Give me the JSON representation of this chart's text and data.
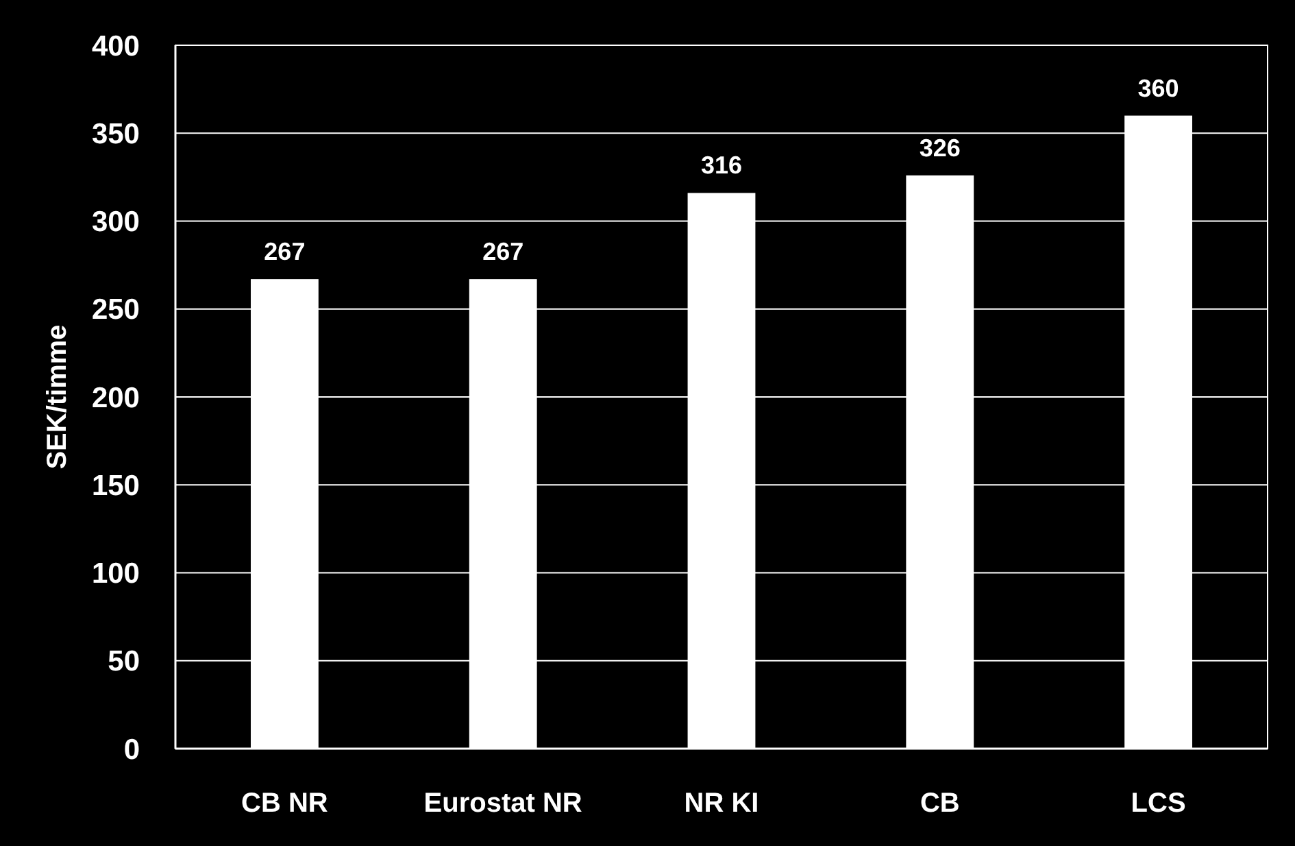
{
  "chart_data": {
    "type": "bar",
    "ylabel": "SEK/timme",
    "categories": [
      "CB NR",
      "Eurostat NR",
      "NR KI",
      "CB",
      "LCS"
    ],
    "values": [
      267,
      267,
      316,
      326,
      360
    ],
    "color": "#ffffff",
    "ylim": [
      0,
      400
    ],
    "yticks": [
      0,
      50,
      100,
      150,
      200,
      250,
      300,
      350,
      400
    ],
    "grid": "y",
    "data_labels": true
  }
}
